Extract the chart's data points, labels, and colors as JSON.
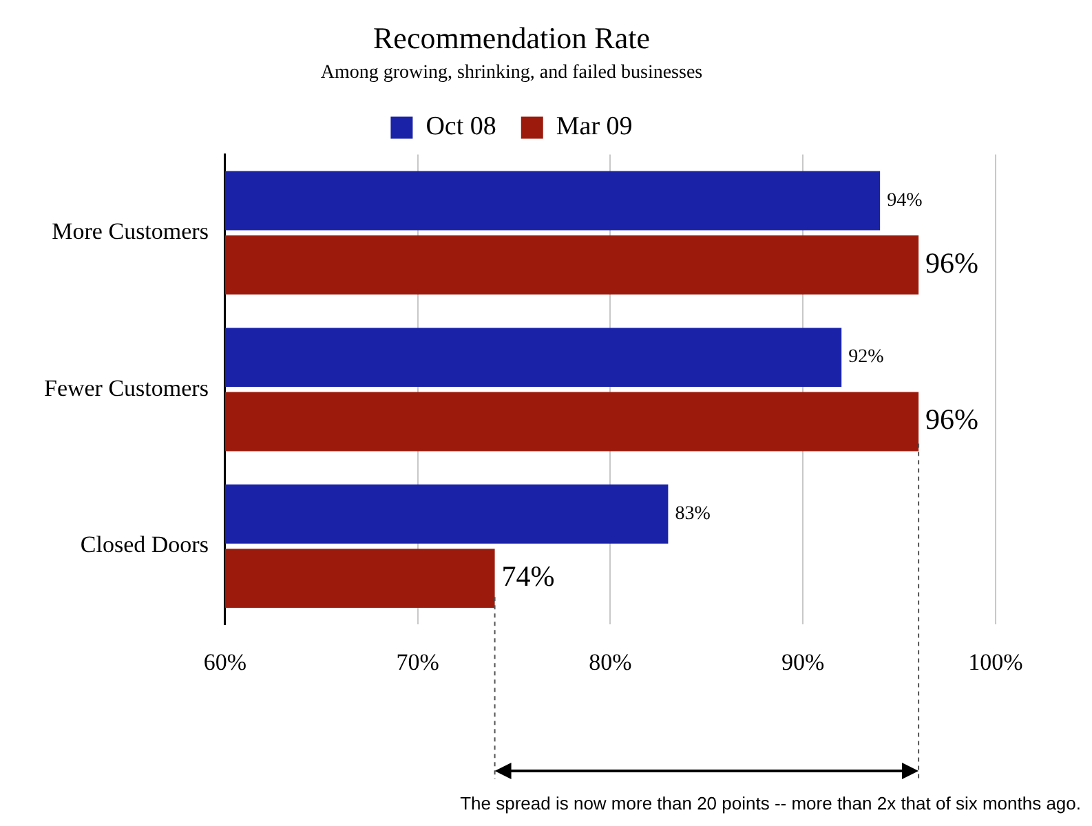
{
  "chart_data": {
    "type": "bar",
    "orientation": "horizontal",
    "title": "Recommendation Rate",
    "subtitle": "Among growing, shrinking, and failed businesses",
    "categories": [
      "More Customers",
      "Fewer Customers",
      "Closed Doors"
    ],
    "series": [
      {
        "name": "Oct 08",
        "color": "#1a23a8",
        "values": [
          94,
          92,
          83
        ],
        "value_labels": [
          "94%",
          "92%",
          "83%"
        ]
      },
      {
        "name": "Mar 09",
        "color": "#9c1a0c",
        "values": [
          96,
          96,
          74
        ],
        "value_labels": [
          "96%",
          "96%",
          "74%"
        ]
      }
    ],
    "xlim": [
      60,
      100
    ],
    "xticks": [
      {
        "value": 60,
        "label": "60%"
      },
      {
        "value": 70,
        "label": "70%"
      },
      {
        "value": 80,
        "label": "80%"
      },
      {
        "value": 90,
        "label": "90%"
      },
      {
        "value": 100,
        "label": "100%"
      }
    ],
    "grid": "x",
    "legend": "top",
    "annotations": [
      "The spread is now more than 20 points -- more than 2x that of six months ago."
    ]
  }
}
